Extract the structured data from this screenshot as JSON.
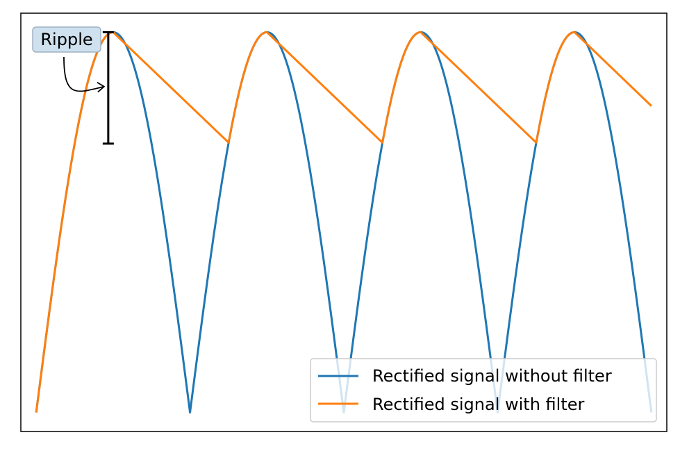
{
  "chart_data": {
    "type": "line",
    "title": "",
    "xlabel": "",
    "ylabel": "",
    "ticks_visible": false,
    "grid": false,
    "xlim": [
      -0.1,
      4.1
    ],
    "ylim": [
      -0.05,
      1.05
    ],
    "legend": {
      "placement": "lower right",
      "entries": [
        {
          "label": "Rectified signal without filter",
          "color": "#1f77b4"
        },
        {
          "label": "Rectified signal with filter",
          "color": "#ff7f0e"
        }
      ]
    },
    "series": [
      {
        "name": "Rectified signal without filter",
        "color": "#1f77b4",
        "x": [
          0,
          0.125,
          0.25,
          0.375,
          0.5,
          0.625,
          0.75,
          0.875,
          1.0,
          1.125,
          1.25,
          1.375,
          1.5,
          1.625,
          1.75,
          1.875,
          2.0,
          2.125,
          2.25,
          2.375,
          2.5,
          2.625,
          2.75,
          2.875,
          3.0,
          3.125,
          3.25,
          3.375,
          3.5,
          3.625,
          3.75,
          3.875,
          4.0
        ],
        "values": [
          0,
          0.38,
          0.71,
          0.92,
          1.0,
          0.92,
          0.71,
          0.38,
          0,
          0.38,
          0.71,
          0.92,
          1.0,
          0.92,
          0.71,
          0.38,
          0,
          0.38,
          0.71,
          0.92,
          1.0,
          0.92,
          0.71,
          0.38,
          0,
          0.38,
          0.71,
          0.92,
          1.0,
          0.92,
          0.71,
          0.38,
          0
        ]
      },
      {
        "name": "Rectified signal with filter",
        "color": "#ff7f0e",
        "x": [
          0,
          0.125,
          0.25,
          0.375,
          0.5,
          1.25,
          1.375,
          1.5,
          2.25,
          2.375,
          2.5,
          3.25,
          3.375,
          3.5,
          4.0
        ],
        "values": [
          0,
          0.38,
          0.71,
          0.92,
          1.0,
          0.71,
          0.92,
          1.0,
          0.71,
          0.92,
          1.0,
          0.71,
          0.92,
          1.0,
          0.806
        ]
      }
    ],
    "annotation": {
      "text": "Ripple",
      "x": 0.5,
      "y_min": 0.707,
      "y_max": 1.0
    }
  }
}
